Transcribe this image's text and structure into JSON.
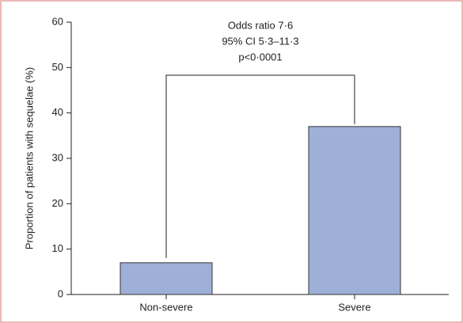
{
  "chart_data": {
    "type": "bar",
    "y_label": "Proportion of patients with sequelae (%)",
    "annotation": [
      "Odds ratio 7·6",
      "95% CI 5·3–11·3",
      "p<0·0001"
    ],
    "categories": [
      "Non-severe",
      "Severe"
    ],
    "values": [
      7,
      37
    ],
    "color": "#9fb0d8",
    "ylim": [
      0,
      60
    ],
    "yticks": [
      0,
      10,
      20,
      30,
      40,
      50,
      60
    ]
  }
}
